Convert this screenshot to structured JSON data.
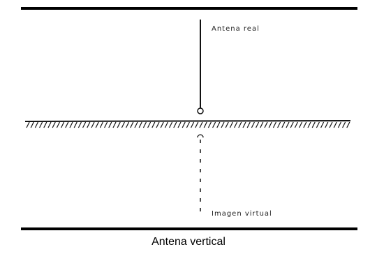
{
  "figure": {
    "label_real": "Antena real",
    "label_virtual": "Imagen virtual",
    "caption": "Antena vertical"
  }
}
